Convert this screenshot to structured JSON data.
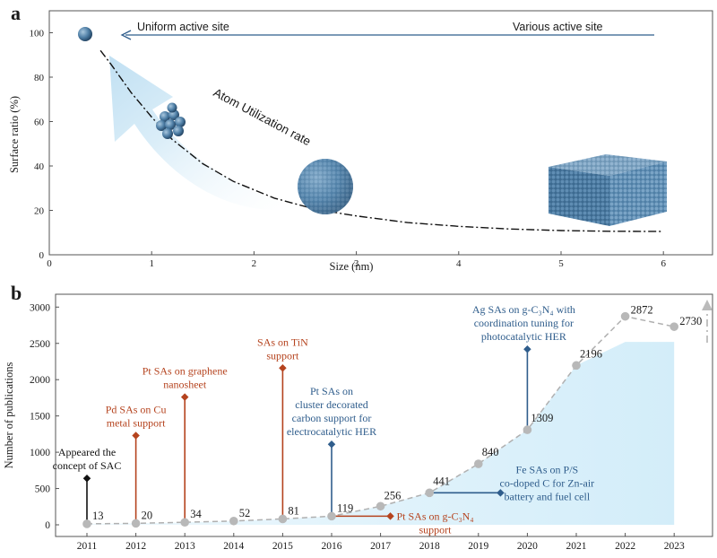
{
  "chart_data": [
    {
      "type": "line",
      "panel_label": "a",
      "xlabel": "Size (nm)",
      "ylabel": "Surface ratio (%)",
      "xlim": [
        0,
        6.5
      ],
      "ylim": [
        0,
        105
      ],
      "x_ticks": [
        "0",
        "1",
        "2",
        "3",
        "4",
        "5",
        "6"
      ],
      "y_ticks": [
        "0",
        "20",
        "40",
        "60",
        "80",
        "100"
      ],
      "curve": {
        "style": "dash-dot",
        "x": [
          0.5,
          0.6,
          0.8,
          1.0,
          1.2,
          1.5,
          1.8,
          2.2,
          2.6,
          3.0,
          3.5,
          4.0,
          4.5,
          5.0,
          5.5,
          6.0
        ],
        "y": [
          92,
          86,
          73,
          62,
          52,
          41,
          33,
          25.5,
          20.5,
          17.5,
          14.5,
          12.8,
          11.6,
          10.9,
          10.6,
          10.5
        ]
      },
      "annotations": {
        "uniform_site": "Uniform active site",
        "various_site": "Various active site",
        "utilization": "Atom Utilization rate"
      },
      "colors": {
        "curve": "#111111",
        "arrow": "#2f5d8c",
        "sphere": "#4f7fa6",
        "glow": "#cfe8f6"
      }
    },
    {
      "type": "line",
      "panel_label": "b",
      "xlabel": "",
      "ylabel": "Number of publications",
      "ylim": [
        0,
        3100
      ],
      "y_ticks": [
        "0",
        "500",
        "1000",
        "1500",
        "2000",
        "2500",
        "3000"
      ],
      "categories": [
        "2011",
        "2012",
        "2013",
        "2014",
        "2015",
        "2016",
        "2017",
        "2018",
        "2019",
        "2020",
        "2021",
        "2022",
        "2023"
      ],
      "values": [
        13,
        20,
        34,
        52,
        81,
        119,
        256,
        441,
        840,
        1309,
        2196,
        2872,
        2730
      ],
      "value_labels": [
        "13",
        "20",
        "34",
        "52",
        "81",
        "119",
        "256",
        "441",
        "840",
        "1309",
        "2196",
        "2872",
        "2730"
      ],
      "events": [
        {
          "year": "2011",
          "top": 640,
          "color": "#111111",
          "lines": [
            "Appeared the",
            "concept of SAC"
          ]
        },
        {
          "year": "2012",
          "top": 1230,
          "color": "#b5431e",
          "lines": [
            "Pd SAs on Cu",
            "metal support"
          ]
        },
        {
          "year": "2013",
          "top": 1760,
          "color": "#b5431e",
          "lines": [
            "Pt SAs on graphene",
            "nanosheet"
          ]
        },
        {
          "year": "2015",
          "top": 2160,
          "color": "#b5431e",
          "lines": [
            "SAs on TiN",
            "support"
          ]
        },
        {
          "year": "2016",
          "top": 1110,
          "color": "#2f5d8c",
          "lines": [
            "Pt SAs on",
            "cluster decorated",
            "carbon support for",
            "electrocatalytic HER"
          ]
        },
        {
          "year": "2016",
          "right_to": 2017.2,
          "color": "#b5431e",
          "lines": [
            "Pt SAs on g-C₃N₄",
            "support"
          ]
        },
        {
          "year": "2018",
          "right_to": 2019.45,
          "color": "#2f5d8c",
          "lines": [
            "Fe SAs on P/S",
            "co-doped C for Zn-air",
            "battery and fuel cell"
          ]
        },
        {
          "year": "2020",
          "top": 2420,
          "color": "#2f5d8c",
          "lines": [
            "Ag SAs on g-C₃N₄ with",
            "coordination tuning for",
            "photocatalytic HER"
          ]
        }
      ],
      "colors": {
        "marker": "#b8b8b8",
        "line": "#b0b0b0",
        "fill": "#daf0fa"
      }
    }
  ]
}
